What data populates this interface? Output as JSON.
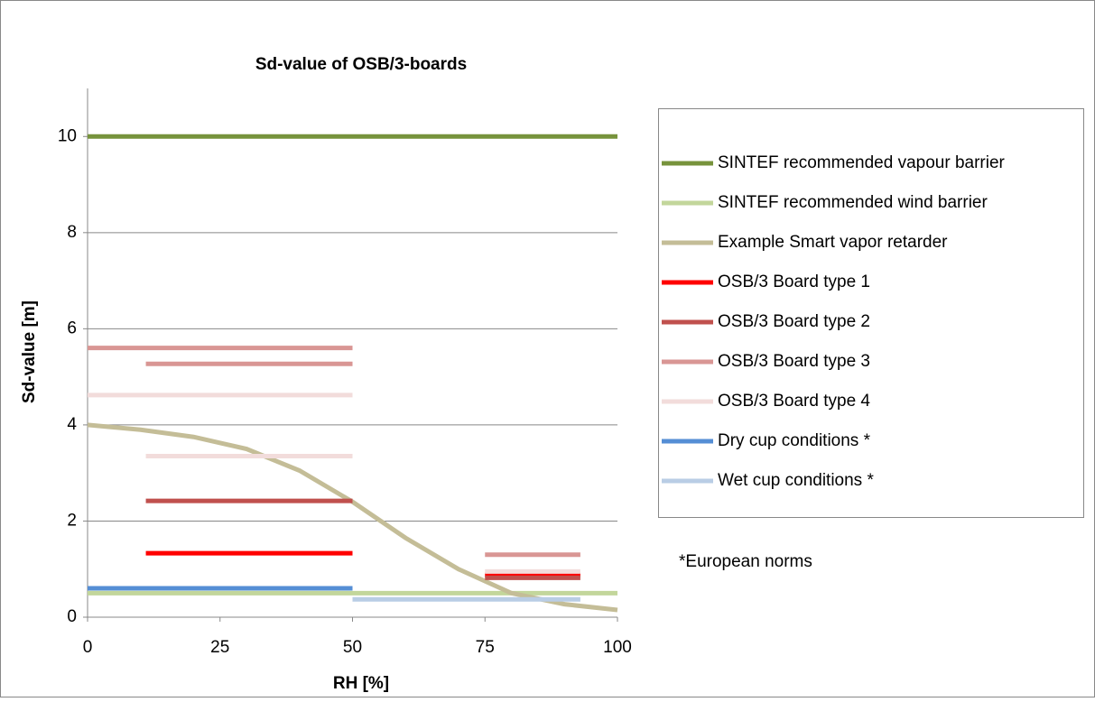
{
  "chart_data": {
    "type": "line",
    "title": "Sd-value of OSB/3-boards",
    "xlabel": "RH [%]",
    "ylabel": "Sd-value [m]",
    "annotation": "*European norms",
    "xlim": [
      0,
      100
    ],
    "xticks": [
      0,
      25,
      50,
      75,
      100
    ],
    "ylim": [
      0,
      11
    ],
    "yticks": [
      0,
      2,
      4,
      6,
      8,
      10
    ],
    "grid": true,
    "legend": "right",
    "series": [
      {
        "name": "SINTEF recommended vapour barrier",
        "color": "#77933c",
        "x": [
          0,
          100
        ],
        "values": [
          10,
          10
        ]
      },
      {
        "name": "SINTEF recommended wind barrier",
        "color": "#c3d69b",
        "x": [
          0,
          100
        ],
        "values": [
          0.5,
          0.5
        ]
      },
      {
        "name": "Example Smart vapor retarder",
        "color": "#c4bd97",
        "x": [
          0,
          10,
          20,
          30,
          40,
          50,
          60,
          70,
          80,
          90,
          100
        ],
        "values": [
          4.0,
          3.9,
          3.75,
          3.5,
          3.05,
          2.4,
          1.65,
          1.0,
          0.5,
          0.27,
          0.15
        ]
      },
      {
        "name": "OSB/3 Board type 1",
        "color": "#ff0000",
        "x": [
          11,
          50,
          null,
          75,
          93
        ],
        "values": [
          1.33,
          1.33,
          null,
          0.88,
          0.88
        ]
      },
      {
        "name": "OSB/3 Board type 2",
        "color": "#c0504d",
        "x": [
          11,
          50,
          null,
          75,
          93
        ],
        "values": [
          2.42,
          2.42,
          null,
          0.82,
          0.82
        ]
      },
      {
        "name": "OSB/3 Board type 3",
        "color": "#d99694",
        "x": [
          0,
          50,
          null,
          11,
          50,
          null,
          75,
          93
        ],
        "values": [
          5.6,
          5.6,
          null,
          5.27,
          5.27,
          null,
          1.3,
          1.3
        ]
      },
      {
        "name": "OSB/3 Board type 4",
        "color": "#f2dcdb",
        "x": [
          0,
          50,
          null,
          11,
          50,
          null,
          75,
          93
        ],
        "values": [
          4.62,
          4.62,
          null,
          3.35,
          3.35,
          null,
          0.95,
          0.95
        ]
      },
      {
        "name": "Dry cup conditions *",
        "color": "#558ed5",
        "x": [
          0,
          50
        ],
        "values": [
          0.6,
          0.6
        ]
      },
      {
        "name": "Wet cup conditions *",
        "color": "#b9cde5",
        "x": [
          50,
          93
        ],
        "values": [
          0.37,
          0.37
        ]
      }
    ]
  }
}
